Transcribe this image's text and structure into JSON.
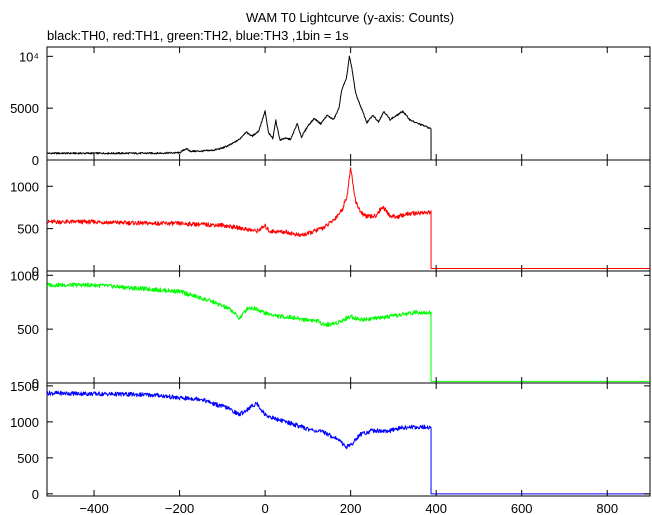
{
  "chart_data": {
    "type": "line",
    "title": "WAM T0 Lightcurve (y-axis: Counts)",
    "subtitle": "black:TH0, red:TH1, green:TH2, blue:TH3 ,1bin = 1s",
    "xlim": [
      -510,
      900
    ],
    "x_ticks": [
      {
        "value": -400,
        "label": "−400"
      },
      {
        "value": -200,
        "label": "−200"
      },
      {
        "value": 0,
        "label": "0"
      },
      {
        "value": 200,
        "label": "200"
      },
      {
        "value": 400,
        "label": "400"
      },
      {
        "value": 600,
        "label": "600"
      },
      {
        "value": 800,
        "label": "800"
      }
    ],
    "panels": [
      {
        "name": "TH0",
        "color": "#000000",
        "ylim": [
          0,
          10900
        ],
        "y_ticks": [
          {
            "value": 0,
            "label": "0"
          },
          {
            "value": 5000,
            "label": "5000"
          },
          {
            "value": 10000,
            "label": "10⁴"
          }
        ],
        "points": [
          [
            -510,
            650
          ],
          [
            -300,
            650
          ],
          [
            -250,
            660
          ],
          [
            -200,
            700
          ],
          [
            -185,
            1100
          ],
          [
            -175,
            850
          ],
          [
            -150,
            850
          ],
          [
            -120,
            950
          ],
          [
            -100,
            1150
          ],
          [
            -80,
            1500
          ],
          [
            -60,
            2000
          ],
          [
            -45,
            2700
          ],
          [
            -30,
            2300
          ],
          [
            -15,
            2800
          ],
          [
            0,
            4700
          ],
          [
            8,
            2600
          ],
          [
            18,
            2100
          ],
          [
            25,
            3800
          ],
          [
            35,
            1900
          ],
          [
            45,
            2100
          ],
          [
            60,
            2000
          ],
          [
            75,
            3500
          ],
          [
            85,
            2200
          ],
          [
            100,
            3300
          ],
          [
            115,
            4000
          ],
          [
            130,
            3500
          ],
          [
            145,
            4300
          ],
          [
            160,
            3900
          ],
          [
            172,
            4900
          ],
          [
            180,
            6900
          ],
          [
            190,
            7800
          ],
          [
            197,
            10000
          ],
          [
            203,
            8800
          ],
          [
            212,
            6400
          ],
          [
            225,
            5000
          ],
          [
            238,
            3600
          ],
          [
            252,
            4300
          ],
          [
            265,
            3700
          ],
          [
            278,
            4700
          ],
          [
            292,
            3900
          ],
          [
            308,
            4300
          ],
          [
            322,
            4700
          ],
          [
            338,
            3900
          ],
          [
            352,
            3600
          ],
          [
            365,
            3400
          ],
          [
            378,
            3200
          ],
          [
            388,
            3000
          ],
          [
            389,
            0
          ],
          [
            900,
            0
          ]
        ]
      },
      {
        "name": "TH1",
        "color": "#ff0000",
        "ylim": [
          0,
          1310
        ],
        "y_ticks": [
          {
            "value": 0,
            "label": "0"
          },
          {
            "value": 500,
            "label": "500"
          },
          {
            "value": 1000,
            "label": "1000"
          }
        ],
        "points": [
          [
            -510,
            580
          ],
          [
            -400,
            580
          ],
          [
            -300,
            565
          ],
          [
            -200,
            560
          ],
          [
            -100,
            540
          ],
          [
            -50,
            500
          ],
          [
            -20,
            470
          ],
          [
            0,
            530
          ],
          [
            10,
            470
          ],
          [
            50,
            460
          ],
          [
            80,
            420
          ],
          [
            100,
            440
          ],
          [
            120,
            480
          ],
          [
            140,
            520
          ],
          [
            160,
            600
          ],
          [
            180,
            720
          ],
          [
            192,
            900
          ],
          [
            200,
            1220
          ],
          [
            206,
            1000
          ],
          [
            212,
            820
          ],
          [
            225,
            680
          ],
          [
            240,
            640
          ],
          [
            258,
            650
          ],
          [
            275,
            760
          ],
          [
            292,
            650
          ],
          [
            310,
            640
          ],
          [
            330,
            670
          ],
          [
            350,
            680
          ],
          [
            370,
            690
          ],
          [
            388,
            690
          ],
          [
            389,
            30
          ],
          [
            900,
            30
          ]
        ]
      },
      {
        "name": "TH2",
        "color": "#00ff00",
        "ylim": [
          0,
          1040
        ],
        "y_ticks": [
          {
            "value": 0,
            "label": "0"
          },
          {
            "value": 500,
            "label": "500"
          },
          {
            "value": 1000,
            "label": "1000"
          }
        ],
        "points": [
          [
            -510,
            910
          ],
          [
            -400,
            910
          ],
          [
            -300,
            880
          ],
          [
            -200,
            850
          ],
          [
            -160,
            800
          ],
          [
            -120,
            750
          ],
          [
            -80,
            680
          ],
          [
            -60,
            600
          ],
          [
            -40,
            700
          ],
          [
            -20,
            690
          ],
          [
            0,
            650
          ],
          [
            30,
            620
          ],
          [
            60,
            610
          ],
          [
            90,
            590
          ],
          [
            120,
            580
          ],
          [
            140,
            540
          ],
          [
            160,
            550
          ],
          [
            180,
            580
          ],
          [
            200,
            620
          ],
          [
            220,
            590
          ],
          [
            260,
            600
          ],
          [
            300,
            620
          ],
          [
            340,
            650
          ],
          [
            360,
            660
          ],
          [
            388,
            650
          ],
          [
            389,
            15
          ],
          [
            900,
            15
          ]
        ]
      },
      {
        "name": "TH3",
        "color": "#0000ff",
        "ylim": [
          -30,
          1540
        ],
        "y_ticks": [
          {
            "value": 0,
            "label": "0"
          },
          {
            "value": 500,
            "label": "500"
          },
          {
            "value": 1000,
            "label": "1000"
          },
          {
            "value": 1500,
            "label": "1500"
          }
        ],
        "points": [
          [
            -510,
            1400
          ],
          [
            -400,
            1390
          ],
          [
            -300,
            1380
          ],
          [
            -250,
            1370
          ],
          [
            -200,
            1330
          ],
          [
            -150,
            1320
          ],
          [
            -120,
            1250
          ],
          [
            -90,
            1200
          ],
          [
            -60,
            1100
          ],
          [
            -40,
            1180
          ],
          [
            -20,
            1260
          ],
          [
            0,
            1100
          ],
          [
            20,
            1050
          ],
          [
            60,
            980
          ],
          [
            100,
            900
          ],
          [
            140,
            850
          ],
          [
            170,
            760
          ],
          [
            190,
            650
          ],
          [
            205,
            700
          ],
          [
            220,
            820
          ],
          [
            250,
            880
          ],
          [
            290,
            870
          ],
          [
            320,
            920
          ],
          [
            360,
            930
          ],
          [
            388,
            920
          ],
          [
            389,
            0
          ],
          [
            900,
            0
          ]
        ]
      }
    ]
  }
}
